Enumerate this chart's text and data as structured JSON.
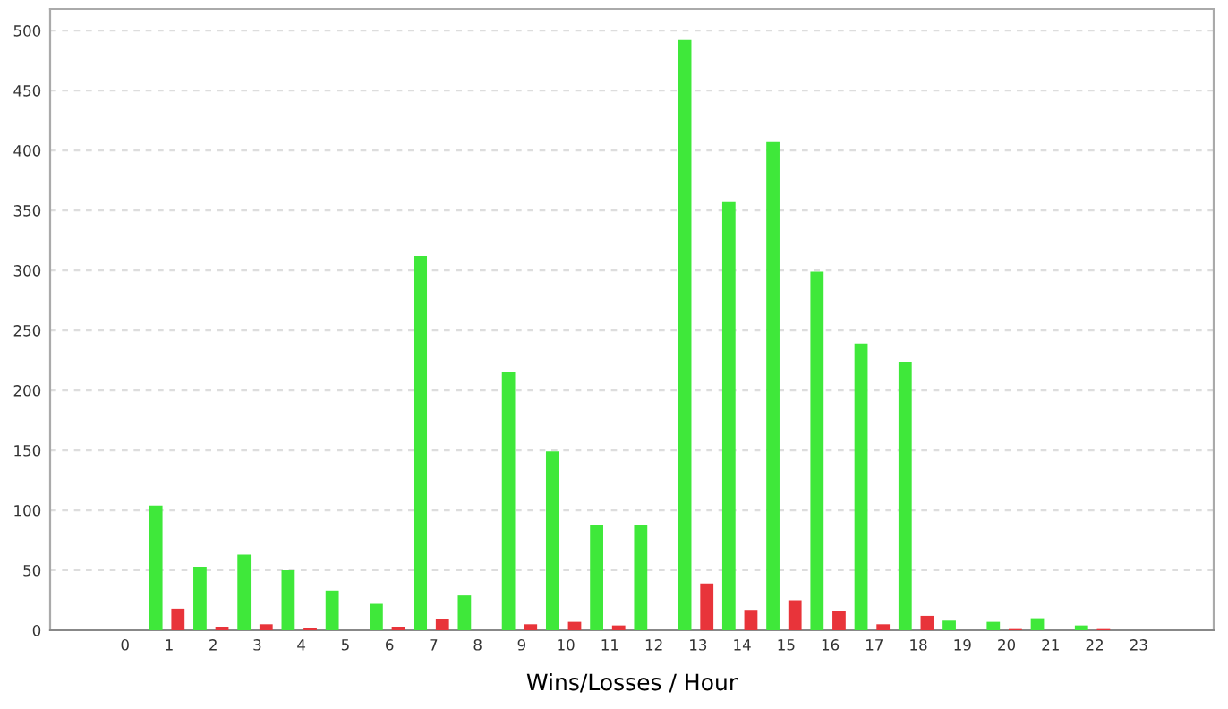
{
  "chart_data": {
    "type": "bar",
    "xlabel": "Wins/Losses / Hour",
    "categories": [
      "0",
      "1",
      "2",
      "3",
      "4",
      "5",
      "6",
      "7",
      "8",
      "9",
      "10",
      "11",
      "12",
      "13",
      "14",
      "15",
      "16",
      "17",
      "18",
      "19",
      "20",
      "21",
      "22",
      "23"
    ],
    "series": [
      {
        "color": "#3fe83a",
        "values": [
          0,
          104,
          53,
          63,
          50,
          33,
          22,
          312,
          29,
          215,
          149,
          88,
          88,
          492,
          357,
          407,
          299,
          239,
          224,
          8,
          7,
          10,
          4,
          0
        ]
      },
      {
        "color": "#e8343a",
        "values": [
          0,
          18,
          3,
          5,
          2,
          0,
          3,
          9,
          0,
          5,
          7,
          4,
          0,
          39,
          17,
          25,
          16,
          5,
          12,
          0,
          1,
          0,
          1,
          0
        ]
      }
    ],
    "ylim": [
      0,
      518
    ],
    "yticks": [
      0,
      50,
      100,
      150,
      200,
      250,
      300,
      350,
      400,
      450,
      500
    ],
    "grid": "y"
  }
}
